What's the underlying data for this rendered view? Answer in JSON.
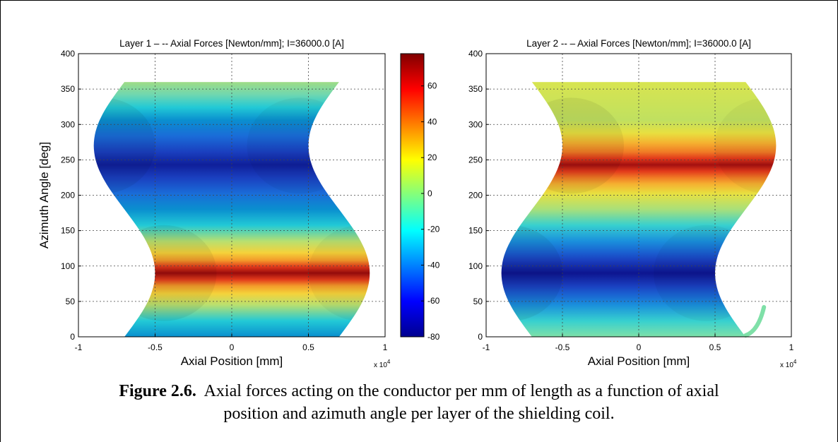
{
  "chart_data": [
    {
      "type": "heatmap",
      "title": "Layer 1 – -- Axial Forces [Newton/mm]; I=36000.0 [A]",
      "xlabel": "Axial Position [mm]",
      "ylabel": "Azimuth Angle [deg]",
      "xlim": [
        -10000,
        10000
      ],
      "ylim": [
        0,
        400
      ],
      "x_ticks": [
        "-1",
        "-0.5",
        "0",
        "0.5",
        "1"
      ],
      "x_multiplier": "x 10",
      "x_multiplier_exp": "4",
      "y_ticks": [
        "0",
        "50",
        "100",
        "150",
        "200",
        "250",
        "300",
        "350",
        "400"
      ],
      "grid": true,
      "color_min_at_azimuth_deg": 270,
      "color_max_at_azimuth_deg": 90
    },
    {
      "type": "heatmap",
      "title": "Layer 2 -- – Axial Forces [Newton/mm]; I=36000.0 [A]",
      "xlabel": "Axial Position [mm]",
      "ylabel": "",
      "xlim": [
        -10000,
        10000
      ],
      "ylim": [
        0,
        400
      ],
      "x_ticks": [
        "-1",
        "-0.5",
        "0",
        "0.5",
        "1"
      ],
      "x_multiplier": "x 10",
      "x_multiplier_exp": "4",
      "y_ticks": [
        "0",
        "50",
        "100",
        "150",
        "200",
        "250",
        "300",
        "350",
        "400"
      ],
      "grid": true,
      "color_min_at_azimuth_deg": 90,
      "color_max_at_azimuth_deg": 270
    }
  ],
  "colorbar": {
    "range": [
      -80,
      78
    ],
    "ticks": [
      "60",
      "40",
      "20",
      "0",
      "-20",
      "-40",
      "-60",
      "-80"
    ],
    "colormap": "jet"
  },
  "caption": {
    "label": "Figure 2.6.",
    "line1": "Axial forces acting on the conductor per mm of length as a function of axial",
    "line2": "position and azimuth angle per layer of the shielding coil."
  }
}
